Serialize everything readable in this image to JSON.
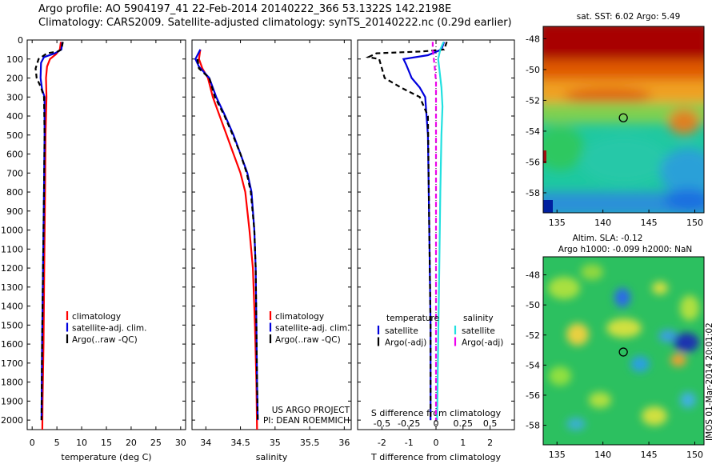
{
  "header": {
    "line1": "Argo profile: AO 5904197_41 22-Feb-2014 20140222_366 53.1322S 142.2198E",
    "line2": "Climatology: CARS2009. Satellite-adjusted climatology: synTS_20140222.nc (0.29d earlier)"
  },
  "colors": {
    "climatology": "#ff0000",
    "satellite": "#0000dd",
    "argo": "#000000",
    "sal_satellite": "#22e0e0",
    "sal_argo": "#ee00ee"
  },
  "chart_data": [
    {
      "type": "line",
      "name": "temperature-profile",
      "xlabel": "temperature (deg C)",
      "xlim": [
        -1,
        31
      ],
      "xticks": [
        0,
        5,
        10,
        15,
        20,
        25,
        30
      ],
      "ylim": [
        0,
        2050
      ],
      "yticks": [
        0,
        100,
        200,
        300,
        400,
        500,
        600,
        700,
        800,
        900,
        1000,
        1100,
        1200,
        1300,
        1400,
        1500,
        1600,
        1700,
        1800,
        1900,
        2000
      ],
      "legend": [
        "climatology",
        "satellite-adj. clim.",
        "Argo(..raw -QC)"
      ],
      "legend_position": "lower-right",
      "series": [
        {
          "name": "climatology",
          "color": "#ff0000",
          "dash": "",
          "points": [
            [
              5.8,
              10
            ],
            [
              5.6,
              50
            ],
            [
              4.8,
              75
            ],
            [
              3.6,
              100
            ],
            [
              3.0,
              140
            ],
            [
              2.8,
              200
            ],
            [
              2.9,
              300
            ],
            [
              2.7,
              500
            ],
            [
              2.6,
              800
            ],
            [
              2.45,
              1200
            ],
            [
              2.3,
              1600
            ],
            [
              2.1,
              1900
            ],
            [
              2.05,
              2050
            ]
          ]
        },
        {
          "name": "satellite-adj. clim.",
          "color": "#0000dd",
          "dash": "",
          "points": [
            [
              6.1,
              10
            ],
            [
              5.9,
              50
            ],
            [
              4.6,
              70
            ],
            [
              2.4,
              90
            ],
            [
              1.8,
              120
            ],
            [
              1.7,
              200
            ],
            [
              2.0,
              260
            ],
            [
              2.5,
              300
            ],
            [
              2.5,
              500
            ],
            [
              2.4,
              800
            ],
            [
              2.2,
              1200
            ],
            [
              2.0,
              1600
            ],
            [
              1.9,
              2000
            ]
          ]
        },
        {
          "name": "Argo(..raw -QC)",
          "color": "#000000",
          "dash": "6,4",
          "points": [
            [
              6.2,
              10
            ],
            [
              5.9,
              50
            ],
            [
              5.2,
              60
            ],
            [
              3.0,
              70
            ],
            [
              1.3,
              100
            ],
            [
              0.7,
              150
            ],
            [
              0.9,
              200
            ],
            [
              1.8,
              250
            ],
            [
              2.4,
              300
            ],
            [
              2.5,
              500
            ],
            [
              2.4,
              800
            ],
            [
              2.2,
              1200
            ],
            [
              2.0,
              1600
            ],
            [
              1.9,
              2000
            ]
          ]
        }
      ]
    },
    {
      "type": "line",
      "name": "salinity-profile",
      "xlabel": "salinity",
      "xlim": [
        33.8,
        36.1
      ],
      "xticks": [
        34,
        34.5,
        35,
        35.5,
        36
      ],
      "ylim": [
        0,
        2050
      ],
      "legend": [
        "climatology",
        "satellite-adj. clim.",
        "Argo(..raw -QC)"
      ],
      "legend_position": "lower-right",
      "annotation": [
        "US ARGO PROJECT",
        "PI: DEAN ROEMMICH"
      ],
      "series": [
        {
          "name": "climatology",
          "color": "#ff0000",
          "dash": "",
          "points": [
            [
              33.92,
              50
            ],
            [
              33.9,
              100
            ],
            [
              33.95,
              150
            ],
            [
              34.03,
              200
            ],
            [
              34.1,
              300
            ],
            [
              34.2,
              400
            ],
            [
              34.3,
              500
            ],
            [
              34.4,
              600
            ],
            [
              34.5,
              700
            ],
            [
              34.57,
              800
            ],
            [
              34.63,
              1000
            ],
            [
              34.68,
              1200
            ],
            [
              34.71,
              1500
            ],
            [
              34.73,
              1800
            ],
            [
              34.74,
              2050
            ]
          ]
        },
        {
          "name": "satellite-adj. clim.",
          "color": "#0000dd",
          "dash": "",
          "points": [
            [
              33.92,
              50
            ],
            [
              33.85,
              100
            ],
            [
              33.9,
              140
            ],
            [
              34.05,
              200
            ],
            [
              34.15,
              300
            ],
            [
              34.28,
              400
            ],
            [
              34.4,
              500
            ],
            [
              34.5,
              600
            ],
            [
              34.6,
              700
            ],
            [
              34.66,
              800
            ],
            [
              34.7,
              1000
            ],
            [
              34.72,
              1200
            ],
            [
              34.73,
              1500
            ],
            [
              34.74,
              1800
            ],
            [
              34.75,
              2000
            ]
          ]
        },
        {
          "name": "Argo(..raw -QC)",
          "color": "#000000",
          "dash": "6,4",
          "points": [
            [
              33.88,
              100
            ],
            [
              33.9,
              150
            ],
            [
              34.05,
              200
            ],
            [
              34.13,
              300
            ],
            [
              34.27,
              400
            ],
            [
              34.39,
              500
            ],
            [
              34.5,
              600
            ],
            [
              34.59,
              700
            ],
            [
              34.65,
              800
            ],
            [
              34.7,
              1000
            ],
            [
              34.72,
              1200
            ],
            [
              34.73,
              1500
            ],
            [
              34.74,
              1800
            ],
            [
              34.75,
              2000
            ]
          ]
        }
      ]
    },
    {
      "type": "line",
      "name": "difference-profile",
      "xlabel": "T difference from climatology",
      "x2label": "S difference from climatology",
      "xlim": [
        -2.9,
        2.9
      ],
      "xticks": [
        -2,
        -1,
        0,
        1,
        2
      ],
      "x2lim": [
        -0.725,
        0.725
      ],
      "x2ticks": [
        -0.5,
        -0.25,
        0,
        0.25,
        0.5
      ],
      "ylim": [
        0,
        2050
      ],
      "legend": {
        "temperature": [
          "satellite",
          "Argo(-adj)"
        ],
        "salinity": [
          "satellite",
          "Argo(-adj)"
        ]
      },
      "legend_headers": [
        "temperature",
        "salinity"
      ],
      "legend_position": "lower-center",
      "series": [
        {
          "name": "temperature satellite",
          "axis": "T",
          "color": "#0000dd",
          "dash": "",
          "points": [
            [
              0.3,
              10
            ],
            [
              0.2,
              50
            ],
            [
              -0.3,
              80
            ],
            [
              -1.2,
              100
            ],
            [
              -1.1,
              130
            ],
            [
              -0.9,
              200
            ],
            [
              -0.6,
              250
            ],
            [
              -0.4,
              300
            ],
            [
              -0.3,
              500
            ],
            [
              -0.25,
              1000
            ],
            [
              -0.2,
              1500
            ],
            [
              -0.2,
              2000
            ]
          ]
        },
        {
          "name": "temperature Argo(-adj)",
          "axis": "T",
          "color": "#000000",
          "dash": "6,4",
          "points": [
            [
              0.4,
              10
            ],
            [
              0.3,
              50
            ],
            [
              -0.5,
              60
            ],
            [
              -2.2,
              70
            ],
            [
              -2.5,
              90
            ],
            [
              -2.1,
              100
            ],
            [
              -2.0,
              150
            ],
            [
              -1.9,
              200
            ],
            [
              -1.3,
              250
            ],
            [
              -0.6,
              300
            ],
            [
              -0.3,
              400
            ],
            [
              -0.25,
              1000
            ],
            [
              -0.2,
              1500
            ],
            [
              -0.2,
              2000
            ]
          ]
        },
        {
          "name": "salinity satellite",
          "axis": "S",
          "color": "#22e0e0",
          "dash": "",
          "points": [
            [
              0.07,
              10
            ],
            [
              0.04,
              50
            ],
            [
              0.02,
              100
            ],
            [
              0.03,
              150
            ],
            [
              0.05,
              250
            ],
            [
              0.06,
              350
            ],
            [
              0.05,
              500
            ],
            [
              0.04,
              800
            ],
            [
              0.03,
              1200
            ],
            [
              0.02,
              1600
            ],
            [
              0.01,
              2000
            ]
          ]
        },
        {
          "name": "salinity Argo(-adj)",
          "axis": "S",
          "color": "#ee00ee",
          "dash": "6,4",
          "points": [
            [
              -0.03,
              10
            ],
            [
              -0.03,
              50
            ],
            [
              -0.02,
              100
            ],
            [
              -0.01,
              150
            ],
            [
              0.0,
              220
            ],
            [
              0.0,
              350
            ],
            [
              0.0,
              500
            ],
            [
              0.0,
              1000
            ],
            [
              0.0,
              2000
            ]
          ]
        }
      ]
    },
    {
      "type": "heatmap",
      "name": "sst-map",
      "title": "sat. SST: 6.02 Argo: 5.49",
      "xlim": [
        133.5,
        151
      ],
      "xticks": [
        135,
        140,
        145,
        150
      ],
      "ylim": [
        -59.3,
        -47.2
      ],
      "yticks": [
        -48,
        -50,
        -52,
        -54,
        -56,
        -58
      ],
      "marker": {
        "lon": 142.2198,
        "lat": -53.1322
      }
    },
    {
      "type": "heatmap",
      "name": "sla-map",
      "title": "Altim. SLA: -0.12",
      "subtitle": "Argo h1000: -0.099 h2000: NaN",
      "xlim": [
        133.5,
        151
      ],
      "xticks": [
        135,
        140,
        145,
        150
      ],
      "ylim": [
        -59.3,
        -46.8
      ],
      "yticks": [
        -48,
        -50,
        -52,
        -54,
        -56,
        -58
      ],
      "marker": {
        "lon": 142.2198,
        "lat": -53.1322
      },
      "side_label": "IMOS 01-Mar-2014 20:01:02"
    }
  ]
}
